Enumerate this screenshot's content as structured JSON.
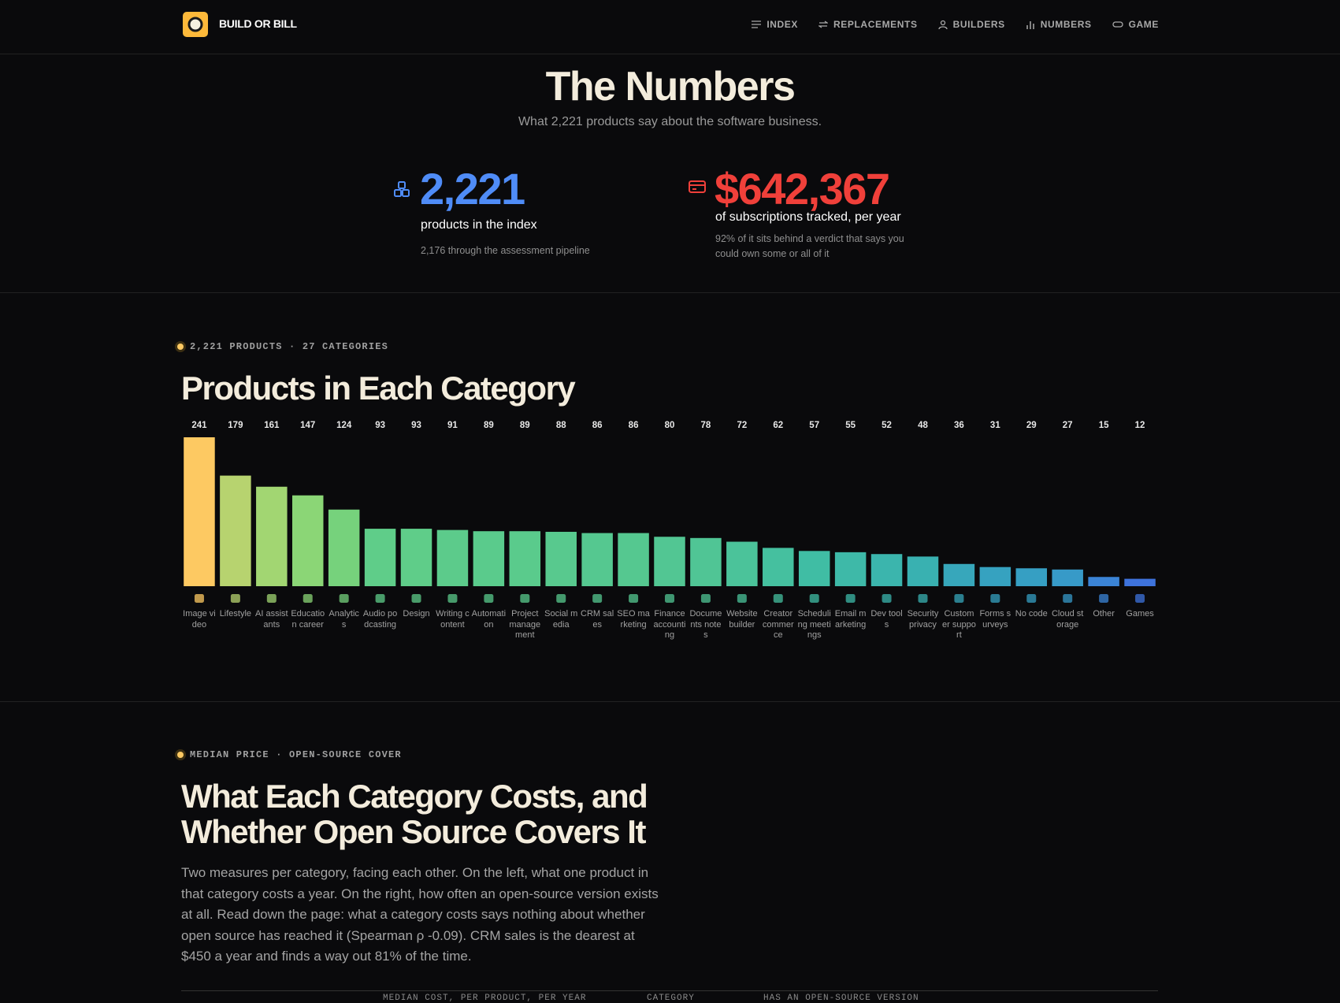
{
  "nav": {
    "brand": "BUILD OR BILL",
    "items": [
      "INDEX",
      "REPLACEMENTS",
      "BUILDERS",
      "NUMBERS",
      "GAME"
    ]
  },
  "hero": {
    "title": "The Numbers",
    "subtitle": "What 2,221 products say about the software business."
  },
  "stats": [
    {
      "value": "2,221",
      "label": "products in the index",
      "note": "2,176 through the assessment pipeline"
    },
    {
      "value": "$642,367",
      "label": "of subscriptions tracked, per year",
      "note": "92% of it sits behind a verdict that says you could own some or all of it"
    }
  ],
  "category_section": {
    "eyebrow": "2,221 PRODUCTS · 27 CATEGORIES"
  },
  "chart_data": {
    "type": "bar",
    "title": "Products in Each Category",
    "categories": [
      "Image video",
      "Lifestyle",
      "AI assistants",
      "Education career",
      "Analytics",
      "Audio podcasting",
      "Design",
      "Writing content",
      "Automation",
      "Project management",
      "Social media",
      "CRM sales",
      "SEO marketing",
      "Finance accounting",
      "Documents notes",
      "Website builder",
      "Creator commerce",
      "Scheduling meetings",
      "Email marketing",
      "Dev tools",
      "Security privacy",
      "Customer support",
      "Forms surveys",
      "No code",
      "Cloud storage",
      "Other",
      "Games"
    ],
    "values": [
      241,
      179,
      161,
      147,
      124,
      93,
      93,
      91,
      89,
      89,
      88,
      86,
      86,
      80,
      78,
      72,
      62,
      57,
      55,
      52,
      48,
      36,
      31,
      29,
      27,
      15,
      12
    ],
    "colors": [
      "#fdc962",
      "#b7d36f",
      "#a2d672",
      "#8bd676",
      "#76d27c",
      "#5fcd89",
      "#5fcd89",
      "#5ccb8b",
      "#5acb8c",
      "#5acb8c",
      "#58c98e",
      "#55c890",
      "#55c890",
      "#52c693",
      "#50c595",
      "#4bc39a",
      "#45c09f",
      "#40bda4",
      "#3eb9a8",
      "#3bb5ad",
      "#39b1b1",
      "#37a7bb",
      "#36a2c0",
      "#369fc3",
      "#379ac8",
      "#3b84d6",
      "#3e73dc"
    ]
  },
  "cost_section": {
    "eyebrow": "MEDIAN PRICE · OPEN-SOURCE COVER",
    "title": "What Each Category Costs, and Whether Open Source Covers It",
    "body": "Two measures per category, facing each other. On the left, what one product in that category costs a year. On the right, how often an open-source version exists at all. Read down the page: what a category costs says nothing about whether open source has reached it (Spearman ρ -0.09). CRM sales is the dearest at $450 a year and finds a way out 81% of the time.",
    "table_headers": [
      "MEDIAN COST, PER PRODUCT, PER YEAR",
      "CATEGORY",
      "HAS AN OPEN-SOURCE VERSION"
    ]
  }
}
